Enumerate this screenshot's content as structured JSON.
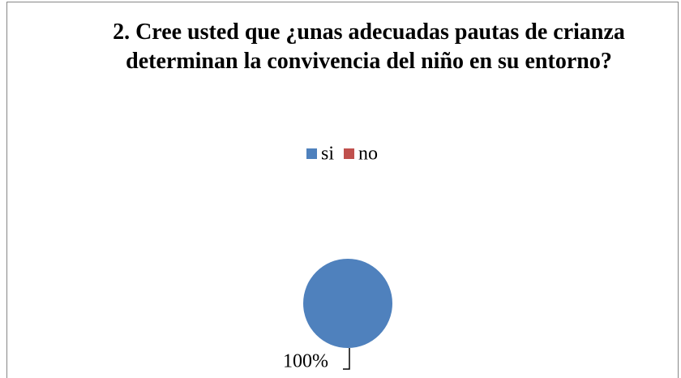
{
  "chart_data": {
    "type": "pie",
    "title": "2. Cree usted que ¿unas adecuadas pautas de crianza determinan la convivencia del niño en su entorno?",
    "categories": [
      "si",
      "no"
    ],
    "values": [
      100,
      0
    ],
    "value_labels": [
      "100%",
      null
    ],
    "colors": [
      "#4f81bd",
      "#c0504d"
    ],
    "legend": "top"
  }
}
